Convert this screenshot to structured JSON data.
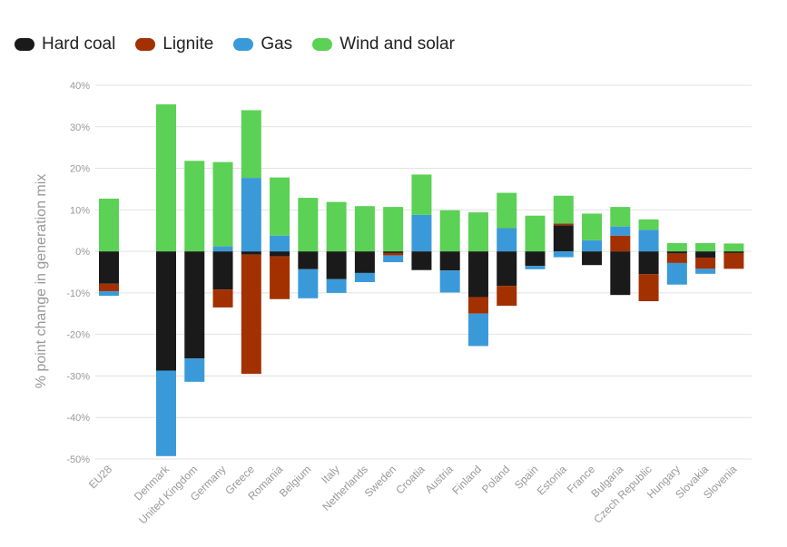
{
  "chart_data": {
    "type": "bar",
    "stacked": true,
    "title": "",
    "xlabel": "",
    "ylabel": "% point change in generation mix",
    "ylim": [
      -50,
      40
    ],
    "yticks": [
      40,
      30,
      20,
      10,
      0,
      -10,
      -20,
      -30,
      -40,
      -50
    ],
    "ytick_labels": [
      "40%",
      "30%",
      "20%",
      "10%",
      "0%",
      "-10%",
      "-20%",
      "-30%",
      "-40%",
      "-50%"
    ],
    "grid": true,
    "legend_position": "top-left",
    "categories": [
      "EU28",
      "Denmark",
      "United Kingdom",
      "Germany",
      "Greece",
      "Romania",
      "Belgium",
      "Italy",
      "Netherlands",
      "Sweden",
      "Croatia",
      "Austria",
      "Finland",
      "Poland",
      "Spain",
      "Estonia",
      "France",
      "Bulgaria",
      "Czech Republic",
      "Hungary",
      "Slovakia",
      "Slovenia"
    ],
    "series": [
      {
        "name": "Hard coal",
        "color": "#1a1a1a",
        "values": [
          -7.8,
          -28.7,
          -25.8,
          -9.2,
          -0.8,
          -1.2,
          -4.3,
          -6.7,
          -5.2,
          -0.4,
          -4.5,
          -4.6,
          -11.0,
          -8.3,
          -3.5,
          6.3,
          -3.3,
          -10.5,
          -5.5,
          -0.5,
          -1.5,
          -0.4
        ]
      },
      {
        "name": "Lignite",
        "color": "#a33100",
        "values": [
          -1.8,
          0,
          0,
          -4.3,
          -28.7,
          -10.3,
          0,
          0,
          0,
          -0.6,
          0,
          0,
          -4.0,
          -4.8,
          0,
          0.4,
          0,
          3.8,
          -6.5,
          -2.3,
          -2.7,
          -3.8
        ]
      },
      {
        "name": "Gas",
        "color": "#3a9ad9",
        "values": [
          -1.1,
          -20.6,
          -5.6,
          1.2,
          17.7,
          3.8,
          -7.0,
          -3.3,
          -2.2,
          -1.6,
          8.8,
          -5.3,
          -7.8,
          5.6,
          -0.8,
          -1.4,
          2.7,
          2.2,
          5.2,
          -5.2,
          -1.2,
          0
        ]
      },
      {
        "name": "Wind and solar",
        "color": "#5bd155",
        "values": [
          12.7,
          35.4,
          21.8,
          20.3,
          16.3,
          14.0,
          12.9,
          11.9,
          10.9,
          10.7,
          9.7,
          9.9,
          9.4,
          8.5,
          8.6,
          6.7,
          6.4,
          4.7,
          2.5,
          2.0,
          2.0,
          1.9
        ]
      }
    ]
  }
}
